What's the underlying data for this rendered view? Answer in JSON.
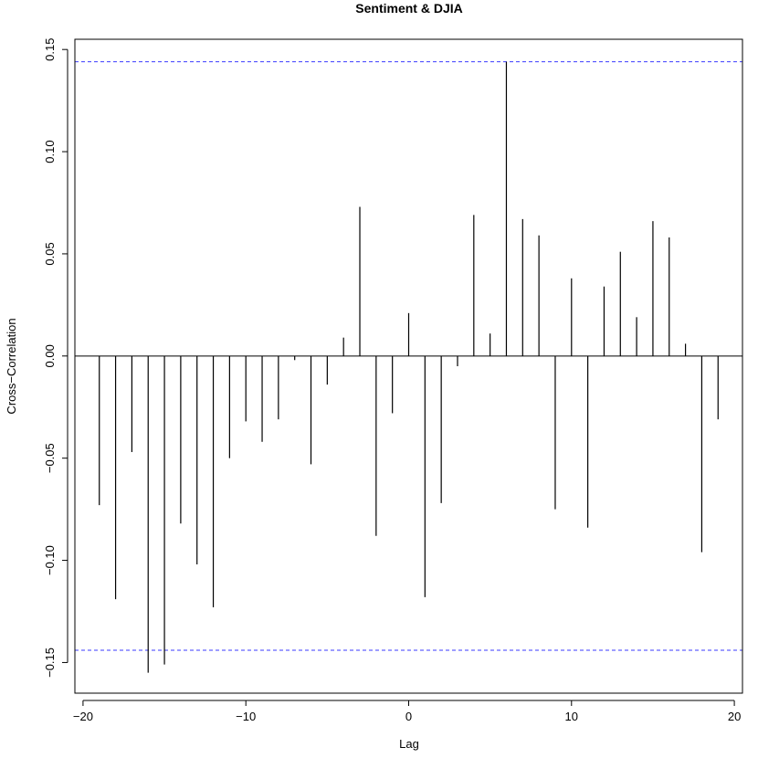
{
  "chart_data": {
    "type": "bar",
    "title": "Sentiment & DJIA",
    "xlabel": "Lag",
    "ylabel": "Cross−Correlation",
    "xlim": [
      -20.5,
      20.5
    ],
    "ylim": [
      -0.165,
      0.155
    ],
    "x_ticks": [
      -20,
      -10,
      0,
      10,
      20
    ],
    "x_tick_labels": [
      "−20",
      "−10",
      "0",
      "10",
      "20"
    ],
    "y_ticks": [
      -0.15,
      -0.1,
      -0.05,
      0.0,
      0.05,
      0.1,
      0.15
    ],
    "y_tick_labels": [
      "−0.15",
      "−0.10",
      "−0.05",
      "0.00",
      "0.05",
      "0.10",
      "0.15"
    ],
    "grid": false,
    "confidence_bound": 0.144,
    "confidence_color": "#3b3bff",
    "bar_color": "#000000",
    "x": [
      -19,
      -18,
      -17,
      -16,
      -15,
      -14,
      -13,
      -12,
      -11,
      -10,
      -9,
      -8,
      -7,
      -6,
      -5,
      -4,
      -3,
      -2,
      -1,
      0,
      1,
      2,
      3,
      4,
      5,
      6,
      7,
      8,
      9,
      10,
      11,
      12,
      13,
      14,
      15,
      16,
      17,
      18,
      19
    ],
    "values": [
      -0.073,
      -0.119,
      -0.047,
      -0.155,
      -0.151,
      -0.082,
      -0.102,
      -0.123,
      -0.05,
      -0.032,
      -0.042,
      -0.031,
      -0.002,
      -0.053,
      -0.014,
      0.009,
      0.073,
      -0.088,
      -0.028,
      0.021,
      -0.118,
      -0.072,
      -0.005,
      0.069,
      0.011,
      0.144,
      0.067,
      0.059,
      -0.075,
      0.038,
      -0.084,
      0.034,
      0.051,
      0.019,
      0.066,
      0.058,
      0.006,
      -0.096,
      -0.031
    ]
  }
}
